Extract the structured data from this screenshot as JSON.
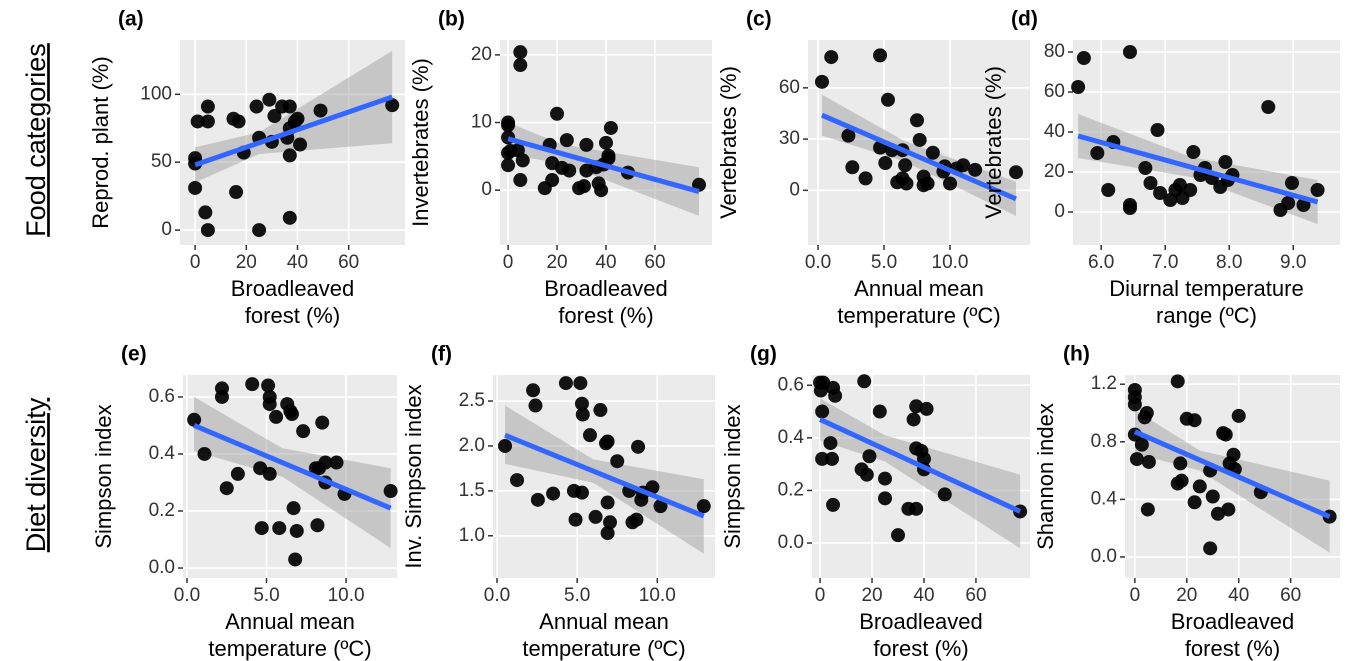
{
  "row_labels": [
    "Food categories",
    "Diet diversity"
  ],
  "chart_data": [
    {
      "type": "scatter",
      "title": "(a)",
      "ylabel": "Reprod. plant (%)",
      "xlabel": [
        "Broadleaved",
        "forest (%)"
      ],
      "xlim": [
        -5.9,
        82
      ],
      "xticks": [
        0,
        20,
        40,
        60
      ],
      "ylim": [
        -11,
        140
      ],
      "yticks": [
        0,
        50,
        100
      ],
      "grid": true,
      "color": "#000000",
      "fit_color": "#3366ff",
      "x": [
        0,
        0,
        1,
        0,
        4,
        5,
        5,
        5,
        15,
        16,
        17,
        19,
        24,
        25,
        25,
        29,
        30,
        31,
        34,
        36,
        37,
        37,
        37,
        37,
        39,
        40,
        41,
        49,
        77
      ],
      "y": [
        53,
        49,
        80,
        31,
        13,
        91,
        80,
        0,
        82,
        28,
        80,
        57,
        91,
        0,
        68,
        96,
        65,
        84,
        91,
        68,
        75,
        91,
        55,
        9,
        80,
        82,
        63,
        88,
        92
      ],
      "fit": {
        "x": [
          0,
          77
        ],
        "y": [
          48,
          98
        ]
      },
      "band": {
        "x": [
          0,
          25,
          77
        ],
        "lower": [
          35,
          56,
          64
        ],
        "upper": [
          61,
          72,
          132
        ]
      }
    },
    {
      "type": "scatter",
      "title": "(b)",
      "ylabel": "Invertebrates (%)",
      "xlabel": [
        "Broadleaved",
        "forest (%)"
      ],
      "xlim": [
        -3.3,
        83.3
      ],
      "xticks": [
        0,
        20,
        40,
        60
      ],
      "ylim": [
        -8.1,
        22.2
      ],
      "yticks": [
        0,
        10,
        20
      ],
      "grid": true,
      "color": "#000000",
      "fit_color": "#3366ff",
      "x": [
        0,
        0,
        0,
        0,
        0,
        1,
        4,
        5,
        5,
        5,
        6,
        15,
        17,
        18,
        18,
        20,
        22,
        24,
        25,
        29,
        31,
        32,
        32,
        36,
        37,
        38,
        39,
        41,
        40,
        41,
        42,
        49,
        78
      ],
      "y": [
        9.6,
        7.8,
        5.5,
        3.7,
        10,
        5.8,
        5.9,
        20.4,
        18.5,
        1.5,
        4.4,
        0.3,
        6.7,
        1.5,
        4,
        11.3,
        3.3,
        7.4,
        2.9,
        0.3,
        0.6,
        2.9,
        6.7,
        3.4,
        1,
        0,
        3.8,
        4.7,
        7,
        5.1,
        9.2,
        2.6,
        0.8
      ],
      "fit": {
        "x": [
          0,
          78
        ],
        "y": [
          7.6,
          -0.2
        ]
      },
      "band": {
        "x": [
          0,
          22,
          78
        ],
        "lower": [
          5.2,
          4.0,
          -3.8
        ],
        "upper": [
          10,
          6.8,
          3.4
        ]
      }
    },
    {
      "type": "scatter",
      "title": "(c)",
      "ylabel": "Vertebrates (%)",
      "xlabel": [
        "Annual mean",
        "temperature (ºC)"
      ],
      "xlim": [
        -0.76,
        16.06
      ],
      "xticks": [
        {
          "value": 0,
          "label": "0.0"
        },
        {
          "value": 5,
          "label": "5.0"
        },
        {
          "value": 10,
          "label": "10.0"
        }
      ],
      "ylim": [
        -32,
        88
      ],
      "yticks": [
        0,
        30,
        60
      ],
      "grid": true,
      "color": "#000000",
      "fit_color": "#3366ff",
      "x": [
        0.3,
        1,
        4.7,
        2.3,
        2.6,
        3.6,
        4.7,
        5.1,
        5.3,
        5.6,
        6,
        6.4,
        6.4,
        6.7,
        6.6,
        7.5,
        7.7,
        8,
        8,
        8.3,
        8.7,
        9.5,
        9.6,
        10,
        10.5,
        11,
        11.9,
        15
      ],
      "y": [
        63.5,
        78,
        79,
        32,
        13.5,
        7,
        25,
        16,
        53,
        23.5,
        4.7,
        7,
        23.5,
        4,
        14.7,
        41,
        29.5,
        8,
        3,
        4,
        22,
        11,
        14,
        4,
        12.8,
        14.7,
        12,
        10.6
      ],
      "fit": {
        "x": [
          0.3,
          15
        ],
        "y": [
          44,
          -5
        ]
      },
      "band": {
        "x": [
          0.3,
          6.5,
          15
        ],
        "lower": [
          32,
          17,
          -15
        ],
        "upper": [
          56,
          29,
          5
        ]
      }
    },
    {
      "type": "scatter",
      "title": "(d)",
      "ylabel": "Vertebrates (%)",
      "xlabel": [
        "Diurnal temperature",
        "range (ºC)"
      ],
      "xlim": [
        5.56,
        9.73
      ],
      "xticks": [
        {
          "value": 6,
          "label": "6.0"
        },
        {
          "value": 7,
          "label": "7.0"
        },
        {
          "value": 8,
          "label": "8.0"
        },
        {
          "value": 9,
          "label": "9.0"
        }
      ],
      "ylim": [
        -16.5,
        86
      ],
      "yticks": [
        0,
        20,
        40,
        60,
        80
      ],
      "grid": true,
      "color": "#000000",
      "fit_color": "#3366ff",
      "x": [
        5.64,
        5.73,
        5.94,
        6.19,
        6.11,
        6.45,
        6.45,
        6.45,
        6.69,
        6.88,
        6.77,
        6.92,
        7.08,
        7.16,
        7.23,
        7.27,
        7.39,
        7.44,
        7.55,
        7.62,
        7.73,
        7.86,
        7.94,
        7.98,
        8.05,
        8.61,
        8.8,
        8.92,
        8.98,
        9.16,
        9.38
      ],
      "y": [
        62.5,
        77,
        29.5,
        35,
        11,
        3.5,
        2,
        80,
        22,
        41,
        14.5,
        9.5,
        6,
        11,
        13.5,
        7,
        11,
        30,
        18.5,
        22,
        17,
        12.5,
        25,
        16,
        18.5,
        52.5,
        1,
        4.5,
        14.5,
        3.5,
        11
      ],
      "fit": {
        "x": [
          5.64,
          9.38
        ],
        "y": [
          38,
          5
        ]
      },
      "band": {
        "x": [
          5.64,
          7.4,
          9.38
        ],
        "lower": [
          27,
          17.5,
          -6
        ],
        "upper": [
          49,
          27.5,
          16
        ]
      }
    },
    {
      "type": "scatter",
      "title": "(e)",
      "ylabel": "Simpson index",
      "xlabel": [
        "Annual mean",
        "temperature (ºC)"
      ],
      "xlim": [
        -0.25,
        13.2
      ],
      "xticks": [
        {
          "value": 0,
          "label": "0.0"
        },
        {
          "value": 5,
          "label": "5.0"
        },
        {
          "value": 10,
          "label": "10.0"
        }
      ],
      "ylim": [
        -0.035,
        0.677
      ],
      "yticks": [
        {
          "value": 0,
          "label": "0.0"
        },
        0.2,
        0.4,
        0.6
      ],
      "grid": true,
      "color": "#000000",
      "fit_color": "#3366ff",
      "x": [
        0.45,
        1.1,
        2.2,
        2.2,
        2.5,
        3.2,
        4.1,
        4.6,
        4.7,
        5.1,
        5.2,
        5.2,
        5.2,
        5.6,
        5.8,
        6.3,
        6.5,
        6.6,
        6.7,
        6.8,
        6.9,
        7.3,
        8.1,
        8.2,
        8.3,
        8.5,
        8.7,
        8.7,
        9.4,
        9.9,
        12.8
      ],
      "y": [
        0.52,
        0.4,
        0.63,
        0.6,
        0.28,
        0.33,
        0.645,
        0.35,
        0.14,
        0.64,
        0.6,
        0.575,
        0.33,
        0.53,
        0.14,
        0.575,
        0.55,
        0.54,
        0.21,
        0.03,
        0.13,
        0.48,
        0.35,
        0.15,
        0.35,
        0.51,
        0.3,
        0.37,
        0.37,
        0.26,
        0.27
      ],
      "fit": {
        "x": [
          0.45,
          12.8
        ],
        "y": [
          0.5,
          0.21
        ]
      },
      "band": {
        "x": [
          0.45,
          6,
          12.8
        ],
        "lower": [
          0.41,
          0.32,
          0.07
        ],
        "upper": [
          0.6,
          0.42,
          0.35
        ]
      }
    },
    {
      "type": "scatter",
      "title": "(f)",
      "ylabel": "Inv. Simpson index",
      "xlabel": [
        "Annual mean",
        "temperature (ºC)"
      ],
      "xlim": [
        -0.25,
        13.6
      ],
      "xticks": [
        {
          "value": 0,
          "label": "0.0"
        },
        {
          "value": 5,
          "label": "5.0"
        },
        {
          "value": 10,
          "label": "10.0"
        }
      ],
      "ylim": [
        0.53,
        2.79
      ],
      "yticks": [
        {
          "value": 1,
          "label": "1.0"
        },
        1.5,
        {
          "value": 2,
          "label": "2.0"
        },
        2.5
      ],
      "grid": true,
      "color": "#000000",
      "fit_color": "#3366ff",
      "x": [
        0.5,
        1.25,
        2.25,
        2.4,
        2.55,
        3.5,
        4.3,
        4.8,
        4.9,
        5.2,
        5.3,
        5.35,
        5.3,
        5.8,
        6.15,
        6.45,
        6.8,
        6.9,
        6.9,
        6.9,
        7.05,
        7.5,
        8.25,
        8.45,
        8.7,
        8.8,
        9.0,
        9.1,
        9.7,
        10.2,
        12.9
      ],
      "y": [
        2.0,
        1.62,
        2.62,
        2.45,
        1.4,
        1.47,
        2.7,
        1.5,
        1.18,
        2.7,
        2.47,
        2.35,
        1.48,
        2.12,
        1.21,
        2.4,
        2.03,
        2.05,
        1.37,
        1.03,
        1.15,
        1.83,
        1.5,
        1.15,
        1.18,
        1.99,
        1.4,
        1.48,
        1.54,
        1.33,
        1.33
      ],
      "fit": {
        "x": [
          0.5,
          12.9
        ],
        "y": [
          2.12,
          1.22
        ]
      },
      "band": {
        "x": [
          0.5,
          6,
          12.9
        ],
        "lower": [
          1.8,
          1.59,
          0.8
        ],
        "upper": [
          2.45,
          1.85,
          1.63
        ]
      }
    },
    {
      "type": "scatter",
      "title": "(g)",
      "ylabel": "Simpson index",
      "xlabel": [
        "Broadleaved",
        "forest (%)"
      ],
      "xlim": [
        -3.1,
        80.8
      ],
      "xticks": [
        0,
        20,
        40,
        60
      ],
      "ylim": [
        -0.133,
        0.639
      ],
      "yticks": [
        {
          "value": 0,
          "label": "0.0"
        },
        0.2,
        0.4,
        0.6
      ],
      "grid": true,
      "color": "#000000",
      "fit_color": "#3366ff",
      "x": [
        0,
        0.3,
        0.8,
        0.8,
        1.2,
        4,
        4.6,
        5,
        5,
        5.8,
        17,
        16,
        18,
        19,
        23,
        25,
        25,
        30,
        34,
        36,
        37,
        37,
        37,
        39,
        40,
        40,
        41,
        48,
        77
      ],
      "y": [
        0.61,
        0.58,
        0.5,
        0.32,
        0.61,
        0.38,
        0.32,
        0.145,
        0.59,
        0.56,
        0.615,
        0.28,
        0.26,
        0.33,
        0.5,
        0.245,
        0.17,
        0.03,
        0.13,
        0.47,
        0.36,
        0.13,
        0.52,
        0.35,
        0.32,
        0.28,
        0.51,
        0.185,
        0.12
      ],
      "fit": {
        "x": [
          0,
          77
        ],
        "y": [
          0.47,
          0.12
        ]
      },
      "band": {
        "x": [
          0,
          25,
          77
        ],
        "lower": [
          0.39,
          0.31,
          -0.02
        ],
        "upper": [
          0.55,
          0.41,
          0.26
        ]
      }
    },
    {
      "type": "scatter",
      "title": "(h)",
      "ylabel": "Shannon index",
      "xlabel": [
        "Broadleaved",
        "forest (%)"
      ],
      "xlim": [
        -3.8,
        79
      ],
      "xticks": [
        0,
        20,
        40,
        60
      ],
      "ylim": [
        -0.146,
        1.264
      ],
      "yticks": [
        {
          "value": 0,
          "label": "0.0"
        },
        0.4,
        0.8,
        1.2
      ],
      "grid": true,
      "color": "#000000",
      "fit_color": "#3366ff",
      "x": [
        0,
        0,
        0,
        0,
        0.8,
        2.7,
        3.8,
        5,
        5.4,
        4.6,
        16.5,
        16.5,
        18,
        17.5,
        20,
        23,
        23,
        25,
        29,
        29,
        30,
        32,
        34,
        35,
        36,
        36.5,
        38,
        40,
        38.5,
        48.5,
        75
      ],
      "y": [
        1.16,
        1.11,
        1.06,
        0.85,
        0.68,
        0.78,
        0.97,
        0.33,
        0.66,
        1.0,
        1.22,
        0.51,
        0.53,
        0.65,
        0.96,
        0.95,
        0.38,
        0.49,
        0.6,
        0.06,
        0.42,
        0.3,
        0.86,
        0.85,
        0.33,
        0.65,
        0.71,
        0.98,
        0.61,
        0.45,
        0.28
      ],
      "fit": {
        "x": [
          0,
          75
        ],
        "y": [
          0.87,
          0.28
        ]
      },
      "band": {
        "x": [
          0,
          25,
          75
        ],
        "lower": [
          0.72,
          0.6,
          0.03
        ],
        "upper": [
          1.02,
          0.74,
          0.53
        ]
      }
    }
  ]
}
